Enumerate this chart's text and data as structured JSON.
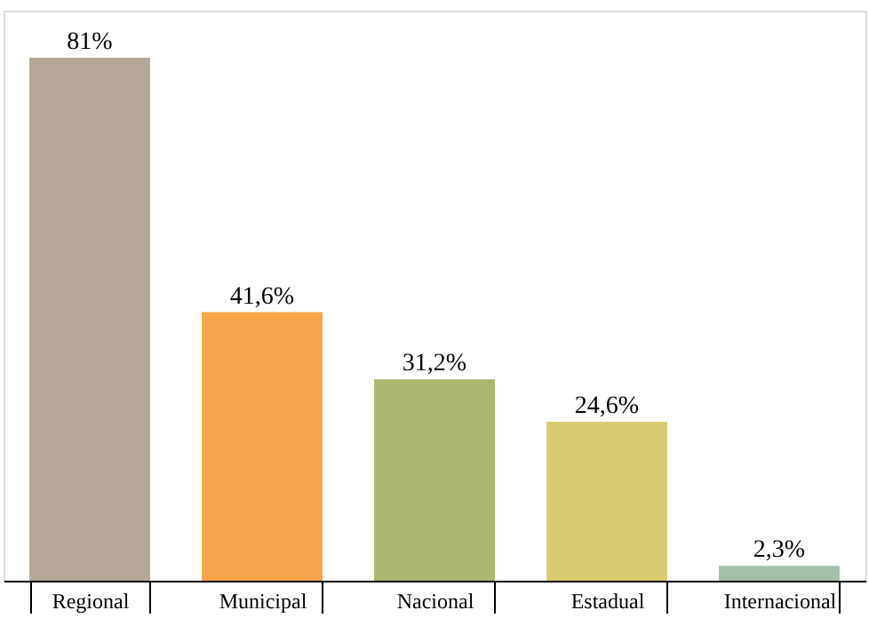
{
  "chart_data": {
    "type": "bar",
    "categories": [
      "Regional",
      "Municipal",
      "Nacional",
      "Estadual",
      "Internacional"
    ],
    "values": [
      81,
      41.6,
      31.2,
      24.6,
      2.3
    ],
    "colors": [
      "#b5a898",
      "#f6a54a",
      "#a9b86e",
      "#d8cc70",
      "#a3c0aa"
    ],
    "value_labels": [
      "81%",
      "41,6%",
      "31,2%",
      "24,6%",
      "2,3%"
    ],
    "grid": false,
    "legend": false
  }
}
